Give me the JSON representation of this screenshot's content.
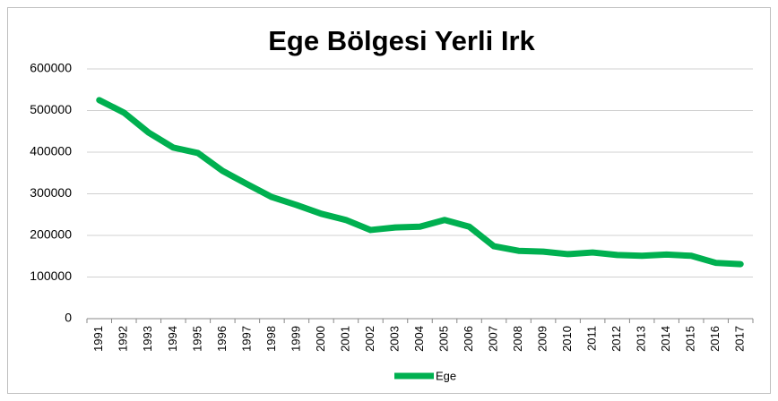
{
  "chart_data": {
    "type": "line",
    "title": "Ege Bölgesi Yerli Irk",
    "categories": [
      "1991",
      "1992",
      "1993",
      "1994",
      "1995",
      "1996",
      "1997",
      "1998",
      "1999",
      "2000",
      "2001",
      "2002",
      "2003",
      "2004",
      "2005",
      "2006",
      "2007",
      "2008",
      "2009",
      "2010",
      "2011",
      "2012",
      "2013",
      "2014",
      "2015",
      "2016",
      "2017"
    ],
    "series": [
      {
        "name": "Ege",
        "color": "#00b050",
        "values": [
          525000,
          495000,
          447000,
          411000,
          398000,
          355000,
          323000,
          292000,
          273000,
          252000,
          237000,
          213000,
          219000,
          221000,
          237000,
          221000,
          174000,
          163000,
          161000,
          155000,
          159000,
          153000,
          151000,
          154000,
          151000,
          134000,
          131000
        ]
      }
    ],
    "ylim": [
      0,
      600000
    ],
    "yticks": [
      0,
      100000,
      200000,
      300000,
      400000,
      500000,
      600000
    ],
    "grid": true,
    "legend": "bottom"
  }
}
